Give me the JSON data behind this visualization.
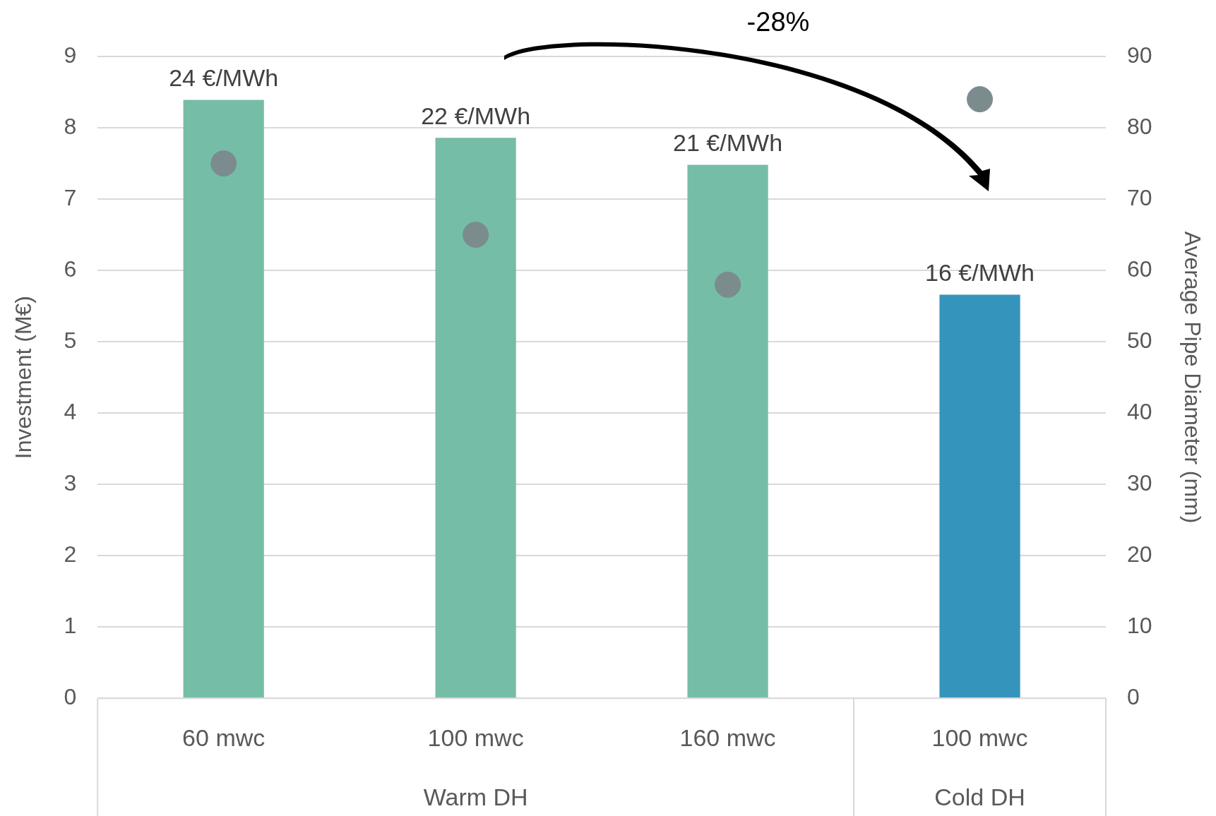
{
  "chart_data": {
    "type": "bar",
    "categories": [
      "60 mwc",
      "100 mwc",
      "160 mwc",
      "100 mwc"
    ],
    "ylabel": "Investment (M€)",
    "y2label": "Average Pipe Diameter (mm)",
    "series": [
      {
        "colors": [
          "#75bda7",
          "#75bda7",
          "#75bda7",
          "#3594bb"
        ],
        "values": [
          8.39,
          7.86,
          7.48,
          5.66
        ]
      },
      {
        "type": "scatter",
        "axis": "y2",
        "color": "#7b8c8e",
        "marker": "circle",
        "values": [
          75,
          65,
          58,
          84
        ]
      }
    ],
    "ylim": [
      0,
      9
    ],
    "yticks": [
      0,
      1,
      2,
      3,
      4,
      5,
      6,
      7,
      8,
      9
    ],
    "y2lim": [
      0,
      90
    ],
    "y2ticks": [
      0,
      10,
      20,
      30,
      40,
      50,
      60,
      70,
      80,
      90
    ],
    "grid": "y",
    "legend": false,
    "annotations": [
      "-28%",
      "Warm DH",
      "Cold DH",
      {
        "text": "24 €/MWh",
        "x": "60 mwc",
        "y": 8.39
      },
      {
        "text": "22 €/MWh",
        "x": "100 mwc",
        "y": 7.86
      },
      {
        "text": "21 €/MWh",
        "x": "160 mwc",
        "y": 7.48
      },
      "16 €/MWh"
    ]
  }
}
